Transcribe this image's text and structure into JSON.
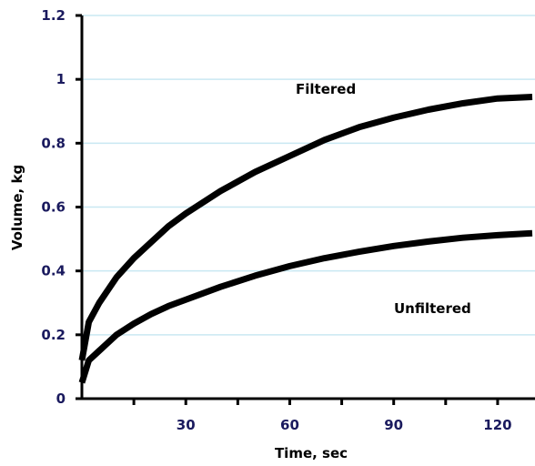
{
  "chart_data": {
    "type": "line",
    "title": "",
    "xlabel": "Time, sec",
    "ylabel": "Volume, kg",
    "xlim": [
      0,
      130
    ],
    "ylim": [
      0,
      1.2
    ],
    "x_ticks": [
      30,
      60,
      90,
      120
    ],
    "x_tick_labels": [
      "30",
      "60",
      "90",
      "120"
    ],
    "y_ticks": [
      0,
      0.2,
      0.4,
      0.6,
      0.8,
      1,
      1.2
    ],
    "y_tick_labels": [
      "0",
      "0.2",
      "0.4",
      "0.6",
      "0.8",
      "1",
      "1.2"
    ],
    "grid": true,
    "grid_color": "#c9e8f2",
    "line_color": "#000000",
    "series": [
      {
        "name": "Filtered",
        "x": [
          0,
          2,
          5,
          10,
          15,
          20,
          25,
          30,
          40,
          50,
          60,
          70,
          80,
          90,
          100,
          110,
          120,
          130
        ],
        "y": [
          0.12,
          0.24,
          0.3,
          0.38,
          0.44,
          0.49,
          0.54,
          0.58,
          0.65,
          0.71,
          0.76,
          0.81,
          0.85,
          0.88,
          0.905,
          0.925,
          0.94,
          0.945
        ]
      },
      {
        "name": "Unfiltered",
        "x": [
          0,
          2,
          5,
          10,
          15,
          20,
          25,
          30,
          40,
          50,
          60,
          70,
          80,
          90,
          100,
          110,
          120,
          130
        ],
        "y": [
          0.05,
          0.12,
          0.15,
          0.2,
          0.235,
          0.265,
          0.29,
          0.31,
          0.35,
          0.385,
          0.415,
          0.44,
          0.46,
          0.478,
          0.492,
          0.504,
          0.512,
          0.518
        ]
      }
    ]
  },
  "annotations": {
    "filtered": "Filtered",
    "unfiltered": "Unfiltered"
  }
}
